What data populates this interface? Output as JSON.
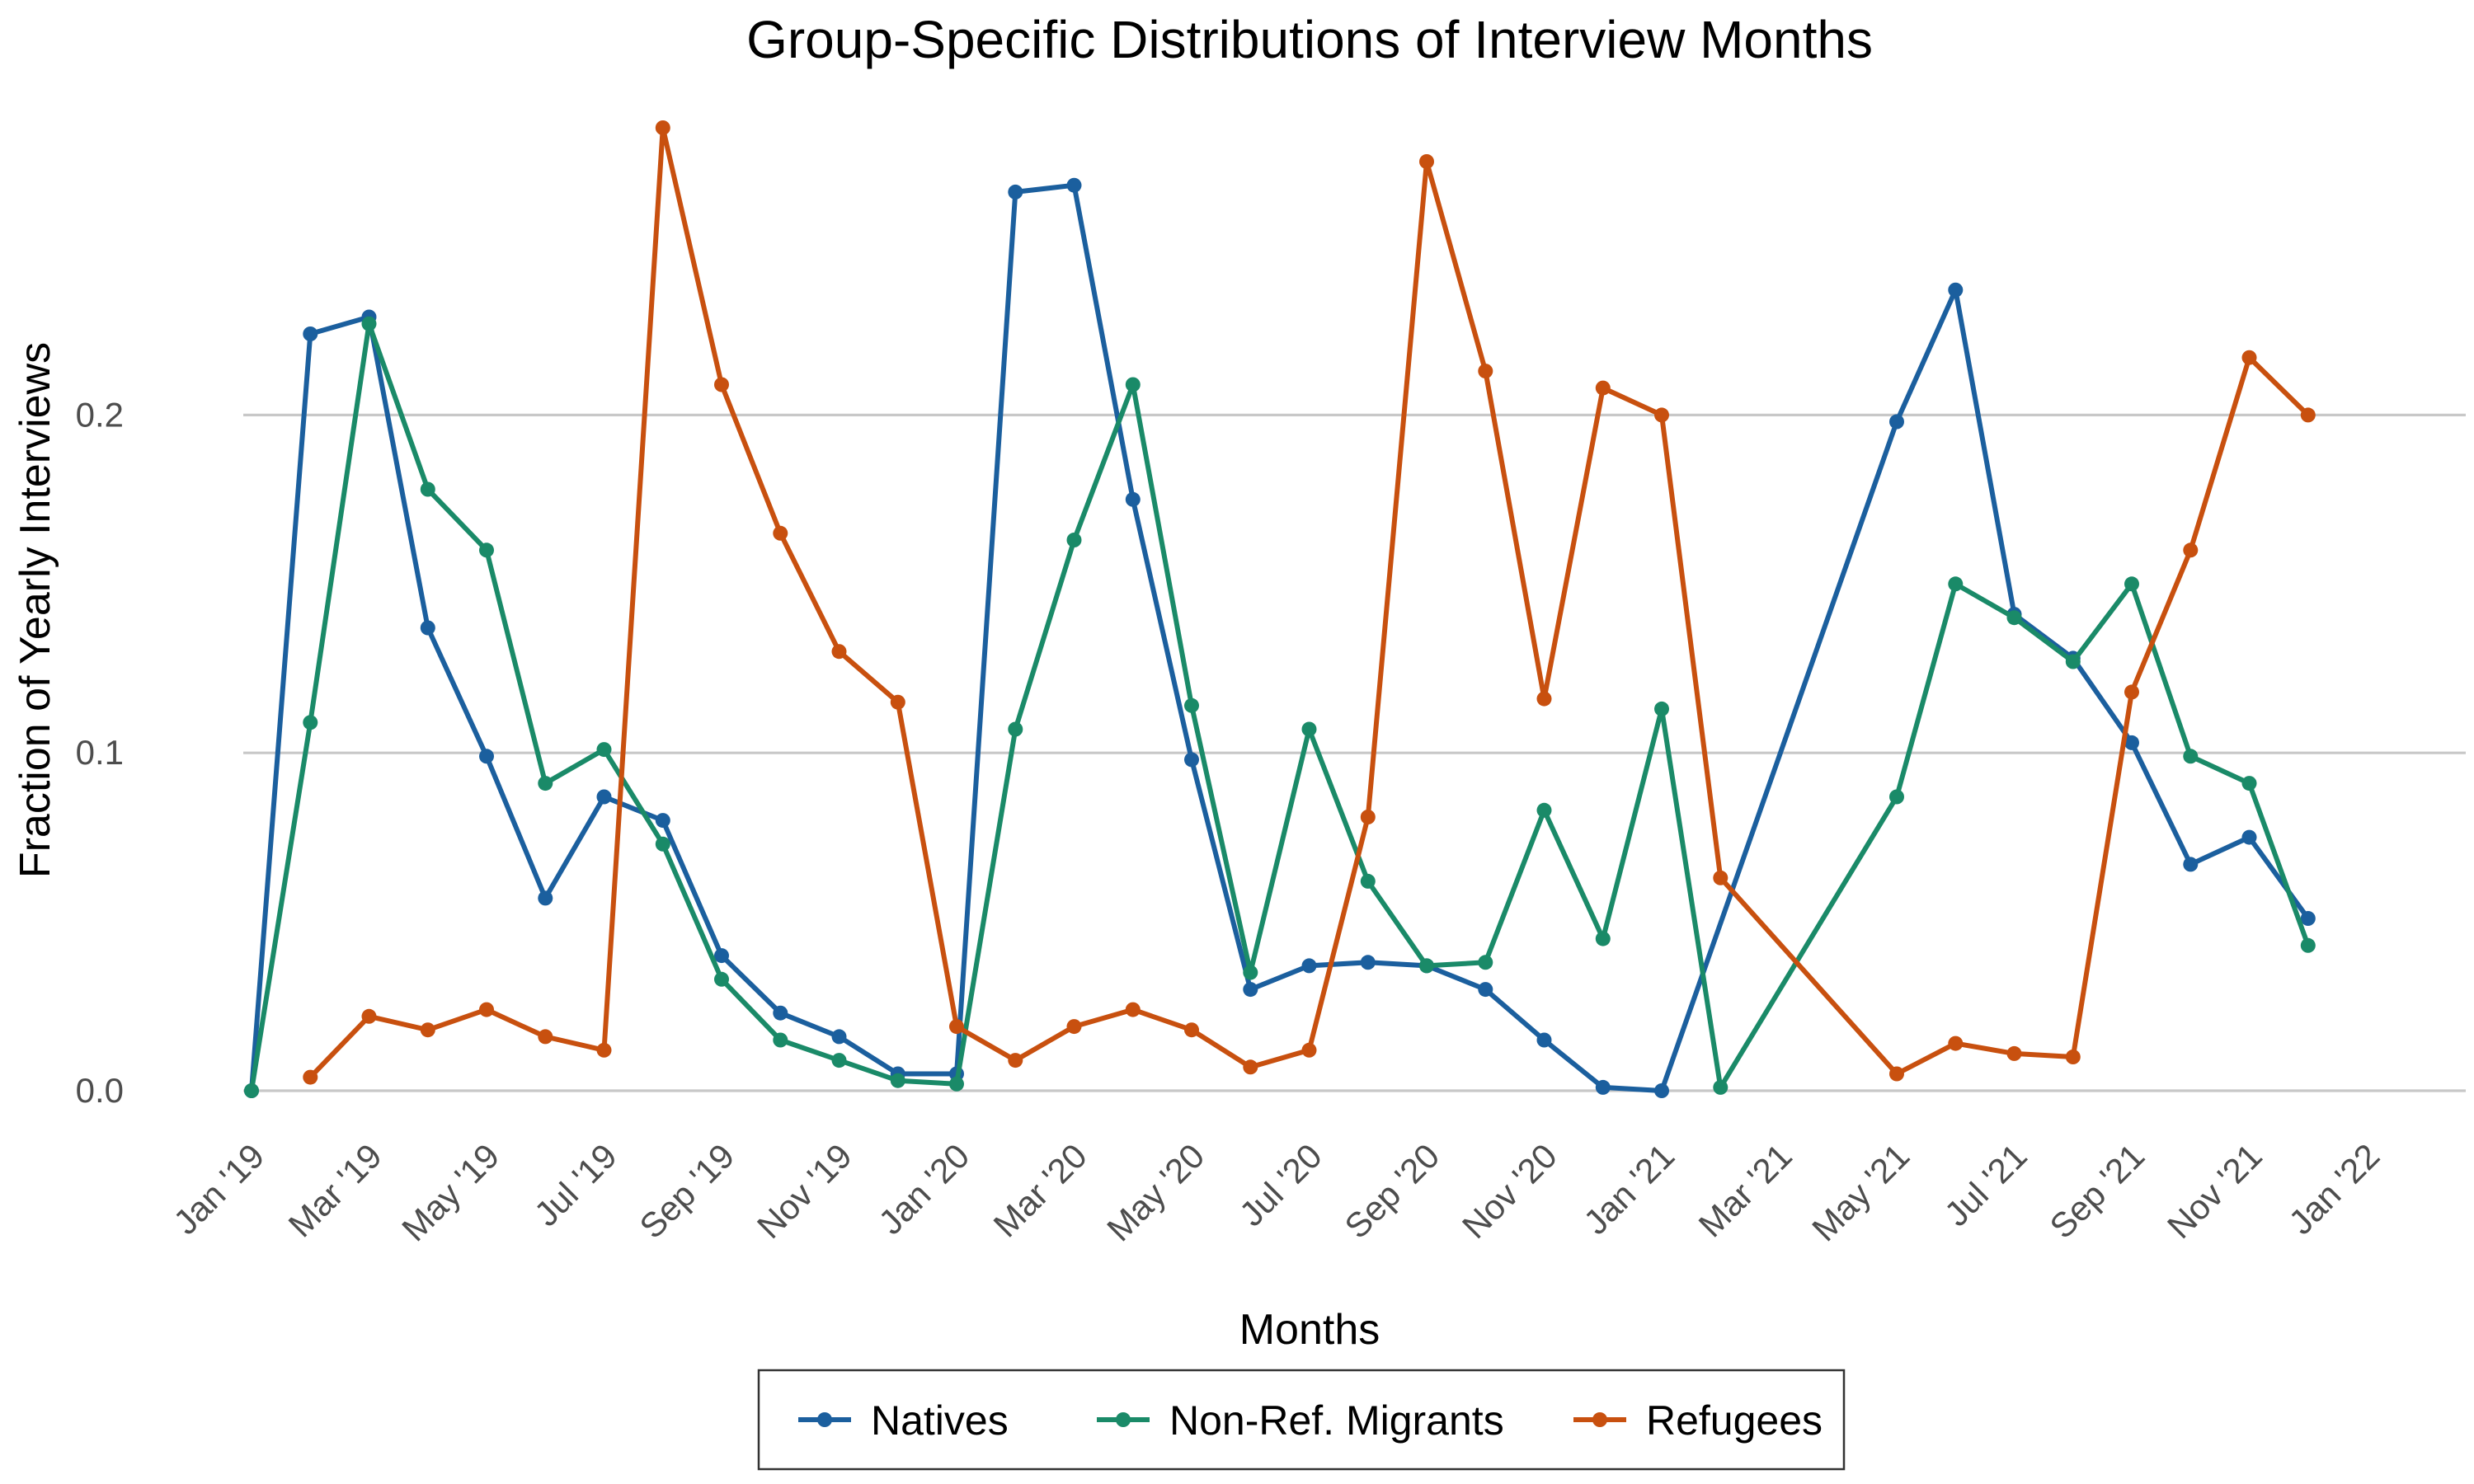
{
  "chart_data": {
    "type": "line",
    "title": "Group-Specific Distributions of Interview Months",
    "xlabel": "Months",
    "ylabel": "Fraction of Yearly Interviews",
    "x_ticks": [
      "Jan '19",
      "Mar '19",
      "May '19",
      "Jul '19",
      "Sep '19",
      "Nov '19",
      "Jan '20",
      "Mar '20",
      "May '20",
      "Jul '20",
      "Sep '20",
      "Nov '20",
      "Jan '21",
      "Mar '21",
      "May '21",
      "Jul '21",
      "Sep '21",
      "Nov '21",
      "Jan '22"
    ],
    "y_ticks": [
      "0.0",
      "0.1",
      "0.2"
    ],
    "ylim": [
      0,
      0.285
    ],
    "grid": "horizontal",
    "legend_position": "bottom",
    "series": [
      {
        "name": "Natives",
        "color": "#1b5f9e",
        "points": [
          [
            "2019-01",
            0.0
          ],
          [
            "2019-02",
            0.224
          ],
          [
            "2019-03",
            0.229
          ],
          [
            "2019-04",
            0.137
          ],
          [
            "2019-05",
            0.099
          ],
          [
            "2019-06",
            0.057
          ],
          [
            "2019-07",
            0.087
          ],
          [
            "2019-08",
            0.08
          ],
          [
            "2019-09",
            0.04
          ],
          [
            "2019-10",
            0.023
          ],
          [
            "2019-11",
            0.016
          ],
          [
            "2019-12",
            0.005
          ],
          [
            "2020-01",
            0.005
          ],
          [
            "2020-02",
            0.266
          ],
          [
            "2020-03",
            0.268
          ],
          [
            "2020-04",
            0.175
          ],
          [
            "2020-05",
            0.098
          ],
          [
            "2020-06",
            0.03
          ],
          [
            "2020-07",
            0.037
          ],
          [
            "2020-08",
            0.038
          ],
          [
            "2020-09",
            0.037
          ],
          [
            "2020-10",
            0.03
          ],
          [
            "2020-11",
            0.015
          ],
          [
            "2020-12",
            0.001
          ],
          [
            "2021-01",
            0.0
          ],
          [
            "2021-05",
            0.198
          ],
          [
            "2021-06",
            0.237
          ],
          [
            "2021-07",
            0.141
          ],
          [
            "2021-08",
            0.128
          ],
          [
            "2021-09",
            0.103
          ],
          [
            "2021-10",
            0.067
          ],
          [
            "2021-11",
            0.075
          ],
          [
            "2021-12",
            0.051
          ]
        ]
      },
      {
        "name": "Non-Ref. Migrants",
        "color": "#1a8a68",
        "points": [
          [
            "2019-01",
            0.0
          ],
          [
            "2019-02",
            0.109
          ],
          [
            "2019-03",
            0.227
          ],
          [
            "2019-04",
            0.178
          ],
          [
            "2019-05",
            0.16
          ],
          [
            "2019-06",
            0.091
          ],
          [
            "2019-07",
            0.101
          ],
          [
            "2019-08",
            0.073
          ],
          [
            "2019-09",
            0.033
          ],
          [
            "2019-10",
            0.015
          ],
          [
            "2019-11",
            0.009
          ],
          [
            "2019-12",
            0.003
          ],
          [
            "2020-01",
            0.002
          ],
          [
            "2020-02",
            0.107
          ],
          [
            "2020-03",
            0.163
          ],
          [
            "2020-04",
            0.209
          ],
          [
            "2020-05",
            0.114
          ],
          [
            "2020-06",
            0.035
          ],
          [
            "2020-07",
            0.107
          ],
          [
            "2020-08",
            0.062
          ],
          [
            "2020-09",
            0.037
          ],
          [
            "2020-10",
            0.038
          ],
          [
            "2020-11",
            0.083
          ],
          [
            "2020-12",
            0.045
          ],
          [
            "2021-01",
            0.113
          ],
          [
            "2021-02",
            0.001
          ],
          [
            "2021-05",
            0.087
          ],
          [
            "2021-06",
            0.15
          ],
          [
            "2021-07",
            0.14
          ],
          [
            "2021-08",
            0.127
          ],
          [
            "2021-09",
            0.15
          ],
          [
            "2021-10",
            0.099
          ],
          [
            "2021-11",
            0.091
          ],
          [
            "2021-12",
            0.043
          ]
        ]
      },
      {
        "name": "Refugees",
        "color": "#c8500f",
        "points": [
          [
            "2019-02",
            0.004
          ],
          [
            "2019-03",
            0.022
          ],
          [
            "2019-04",
            0.018
          ],
          [
            "2019-05",
            0.024
          ],
          [
            "2019-06",
            0.016
          ],
          [
            "2019-07",
            0.012
          ],
          [
            "2019-08",
            0.285
          ],
          [
            "2019-09",
            0.209
          ],
          [
            "2019-10",
            0.165
          ],
          [
            "2019-11",
            0.13
          ],
          [
            "2019-12",
            0.115
          ],
          [
            "2020-01",
            0.019
          ],
          [
            "2020-02",
            0.009
          ],
          [
            "2020-03",
            0.019
          ],
          [
            "2020-04",
            0.024
          ],
          [
            "2020-05",
            0.018
          ],
          [
            "2020-06",
            0.007
          ],
          [
            "2020-07",
            0.012
          ],
          [
            "2020-08",
            0.081
          ],
          [
            "2020-09",
            0.275
          ],
          [
            "2020-10",
            0.213
          ],
          [
            "2020-11",
            0.116
          ],
          [
            "2020-12",
            0.208
          ],
          [
            "2021-01",
            0.2
          ],
          [
            "2021-02",
            0.063
          ],
          [
            "2021-05",
            0.005
          ],
          [
            "2021-06",
            0.014
          ],
          [
            "2021-07",
            0.011
          ],
          [
            "2021-08",
            0.01
          ],
          [
            "2021-09",
            0.118
          ],
          [
            "2021-10",
            0.16
          ],
          [
            "2021-11",
            0.217
          ],
          [
            "2021-12",
            0.2
          ]
        ]
      }
    ]
  }
}
